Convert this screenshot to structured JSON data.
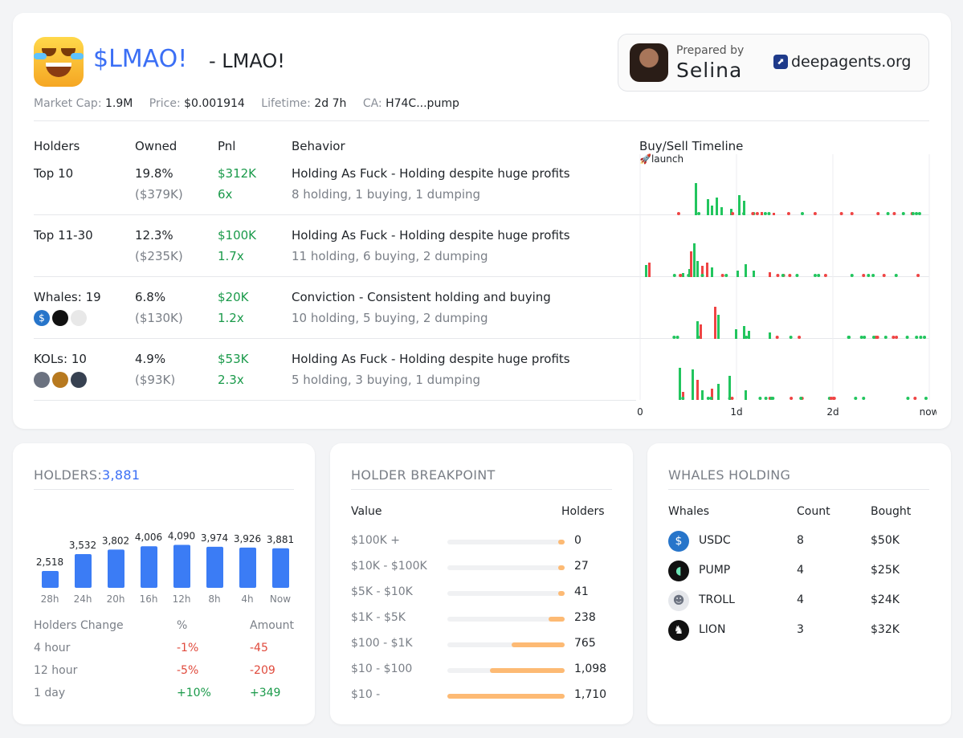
{
  "header": {
    "ticker": "$LMAO!",
    "name": "- LMAO!",
    "market_cap_label": "Market Cap:",
    "market_cap": "1.9M",
    "price_label": "Price:",
    "price": "$0.001914",
    "lifetime_label": "Lifetime:",
    "lifetime": "2d 7h",
    "ca_label": "CA:",
    "ca": "H74C...pump"
  },
  "prepared": {
    "label": "Prepared by",
    "name": "Selina",
    "site": "deepagents.org"
  },
  "holders_table": {
    "headers": [
      "Holders",
      "Owned",
      "Pnl",
      "Behavior",
      "Buy/Sell Timeline"
    ],
    "launch_label": "🚀launch",
    "rows": [
      {
        "group": "Top 10",
        "owned": "19.8%",
        "owned_usd": "($379K)",
        "pnl": "$312K",
        "pnl_x": "6x",
        "behavior": "Holding As Fuck - Holding despite huge profits",
        "detail": "8 holding, 1 buying, 1 dumping"
      },
      {
        "group": "Top 11-30",
        "owned": "12.3%",
        "owned_usd": "($235K)",
        "pnl": "$100K",
        "pnl_x": "1.7x",
        "behavior": "Holding As Fuck - Holding despite huge profits",
        "detail": "11 holding, 6 buying, 2 dumping"
      },
      {
        "group": "Whales: 19",
        "owned": "6.8%",
        "owned_usd": "($130K)",
        "pnl": "$20K",
        "pnl_x": "1.2x",
        "behavior": "Conviction - Consistent holding and buying",
        "detail": "10 holding, 5 buying, 2 dumping"
      },
      {
        "group": "KOLs: 10",
        "owned": "4.9%",
        "owned_usd": "($93K)",
        "pnl": "$53K",
        "pnl_x": "2.3x",
        "behavior": "Holding As Fuck - Holding despite huge profits",
        "detail": "5 holding, 3 buying, 1 dumping"
      }
    ],
    "timeline_ticks": [
      "0",
      "1d",
      "2d",
      "now"
    ]
  },
  "holders_card": {
    "title": "HOLDERS:",
    "count": "3,881",
    "chart_data": {
      "type": "bar",
      "categories": [
        "28h",
        "24h",
        "20h",
        "16h",
        "12h",
        "8h",
        "4h",
        "Now"
      ],
      "values": [
        2518,
        3532,
        3802,
        4006,
        4090,
        3974,
        3926,
        3881
      ],
      "value_labels": [
        "2,518",
        "3,532",
        "3,802",
        "4,006",
        "4,090",
        "3,974",
        "3,926",
        "3,881"
      ],
      "color": "#3b7cf5"
    },
    "change_headers": [
      "Holders Change",
      "%",
      "Amount"
    ],
    "changes": [
      {
        "period": "4 hour",
        "pct": "-1%",
        "amount": "-45",
        "dir": "down"
      },
      {
        "period": "12 hour",
        "pct": "-5%",
        "amount": "-209",
        "dir": "down"
      },
      {
        "period": "1 day",
        "pct": "+10%",
        "amount": "+349",
        "dir": "up"
      }
    ]
  },
  "breakpoint_card": {
    "title": "HOLDER BREAKPOINT",
    "headers": [
      "Value",
      "Holders"
    ],
    "rows": [
      {
        "range": "$100K +",
        "holders": "0",
        "fill": 0.02
      },
      {
        "range": "$10K - $100K",
        "holders": "27",
        "fill": 0.03
      },
      {
        "range": "$5K - $10K",
        "holders": "41",
        "fill": 0.03
      },
      {
        "range": "$1K - $5K",
        "holders": "238",
        "fill": 0.14
      },
      {
        "range": "$100 - $1K",
        "holders": "765",
        "fill": 0.45
      },
      {
        "range": "$10 - $100",
        "holders": "1,098",
        "fill": 0.64
      },
      {
        "range": "$10 -",
        "holders": "1,710",
        "fill": 1.0
      }
    ]
  },
  "whales_card": {
    "title": "WHALES HOLDING",
    "headers": [
      "Whales",
      "Count",
      "Bought"
    ],
    "rows": [
      {
        "name": "USDC",
        "count": "8",
        "bought": "$50K",
        "icon": "usdc-icon"
      },
      {
        "name": "PUMP",
        "count": "4",
        "bought": "$25K",
        "icon": "pump-icon"
      },
      {
        "name": "TROLL",
        "count": "4",
        "bought": "$24K",
        "icon": "troll-icon"
      },
      {
        "name": "LION",
        "count": "3",
        "bought": "$32K",
        "icon": "lion-icon"
      }
    ]
  },
  "colors": {
    "accent": "#3b6ff5",
    "buy": "#22c55e",
    "sell": "#ef4444",
    "bar": "#3b7cf5",
    "breakpoint": "#fdba74"
  }
}
